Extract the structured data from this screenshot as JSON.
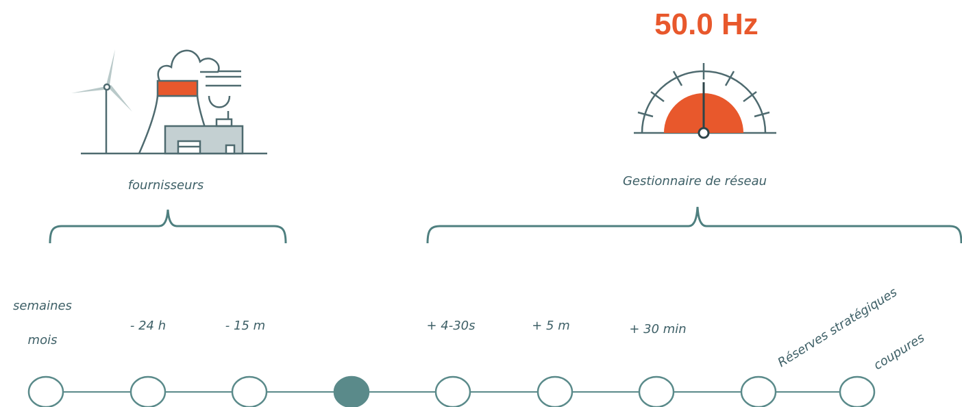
{
  "frequency": "50.0 Hz",
  "groups": [
    {
      "label": "fournisseurs"
    },
    {
      "label": "Gestionnaire de réseau"
    }
  ],
  "timeline": [
    {
      "lines": [
        "semaines",
        "mois"
      ],
      "active": false
    },
    {
      "lines": [
        "- 24 h"
      ],
      "active": false
    },
    {
      "lines": [
        "- 15 m"
      ],
      "active": false
    },
    {
      "active": true
    },
    {
      "lines": [
        "+ 4-30s"
      ],
      "active": false
    },
    {
      "lines": [
        "+ 5 m"
      ],
      "active": false
    },
    {
      "lines": [
        "+ 30 min"
      ],
      "active": false
    },
    {
      "lines": [
        "Réserves stratégiques"
      ],
      "active": false
    },
    {
      "lines": [
        "coupures"
      ],
      "active": false
    }
  ]
}
